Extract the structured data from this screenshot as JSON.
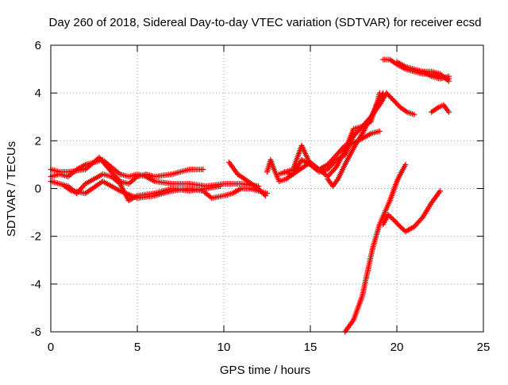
{
  "chart_data": {
    "type": "scatter",
    "title": "Day 260 of 2018, Sidereal Day-to-day VTEC variation (SDTVAR) for receiver ecsd",
    "xlabel": "GPS time / hours",
    "ylabel": "SDTVAR / TECUs",
    "xlim": [
      0,
      25
    ],
    "ylim": [
      -6,
      6
    ],
    "xticks": [
      0,
      5,
      10,
      15,
      20,
      25
    ],
    "yticks": [
      -6,
      -4,
      -2,
      0,
      2,
      4,
      6
    ],
    "xtick_labels": [
      "0",
      "5",
      "10",
      "15",
      "20",
      "25"
    ],
    "ytick_labels": [
      "-6",
      "-4",
      "-2",
      "0",
      "2",
      "4",
      "6"
    ],
    "grid": true,
    "legend": "none",
    "marker": "+",
    "color": "#ff0000",
    "series": [
      {
        "points": [
          [
            0,
            0.5
          ],
          [
            0.5,
            0.6
          ],
          [
            1,
            0.5
          ],
          [
            1.5,
            0.8
          ],
          [
            2,
            1.0
          ],
          [
            2.5,
            1.1
          ],
          [
            3,
            1.2
          ],
          [
            3.5,
            0.9
          ],
          [
            4,
            0.6
          ],
          [
            4.5,
            0.5
          ],
          [
            5,
            0.6
          ],
          [
            5.5,
            0.5
          ],
          [
            6,
            0.3
          ],
          [
            7,
            0.2
          ],
          [
            8,
            0.2
          ],
          [
            9,
            0.1
          ],
          [
            10,
            0.2
          ],
          [
            11,
            0.2
          ],
          [
            12,
            0.1
          ]
        ]
      },
      {
        "points": [
          [
            0,
            0.8
          ],
          [
            0.5,
            0.7
          ],
          [
            1,
            0.7
          ],
          [
            2,
            0.8
          ],
          [
            2.8,
            1.3
          ],
          [
            3.5,
            0.7
          ],
          [
            4,
            0.3
          ],
          [
            4.5,
            0.2
          ],
          [
            5,
            0.5
          ],
          [
            5.5,
            0.6
          ],
          [
            6,
            0.5
          ],
          [
            7,
            0.6
          ],
          [
            8,
            0.8
          ],
          [
            8.8,
            0.8
          ]
        ]
      },
      {
        "points": [
          [
            0,
            0.3
          ],
          [
            1,
            0.1
          ],
          [
            1.5,
            -0.2
          ],
          [
            2,
            0.2
          ],
          [
            3,
            0.6
          ],
          [
            3.5,
            0.5
          ],
          [
            4,
            0.2
          ],
          [
            4.5,
            -0.5
          ],
          [
            5,
            -0.3
          ],
          [
            6,
            -0.2
          ],
          [
            7,
            0.0
          ],
          [
            8,
            -0.1
          ],
          [
            9,
            0.0
          ],
          [
            9.8,
            0.1
          ]
        ]
      },
      {
        "points": [
          [
            0.8,
            0.1
          ],
          [
            1.2,
            -0.1
          ],
          [
            2,
            -0.2
          ],
          [
            3,
            0.3
          ],
          [
            4,
            -0.1
          ],
          [
            5,
            -0.4
          ],
          [
            6,
            -0.3
          ],
          [
            7,
            -0.1
          ],
          [
            8,
            0.0
          ],
          [
            8.8,
            -0.1
          ],
          [
            9.3,
            -0.4
          ],
          [
            10,
            -0.3
          ],
          [
            10.5,
            -0.2
          ],
          [
            11,
            0.0
          ],
          [
            11.5,
            0.0
          ],
          [
            12,
            -0.1
          ],
          [
            12.5,
            -0.2
          ]
        ]
      },
      {
        "points": [
          [
            10.3,
            1.1
          ],
          [
            10.8,
            0.6
          ],
          [
            11.2,
            0.4
          ],
          [
            11.6,
            0.2
          ],
          [
            12,
            0.0
          ],
          [
            12.4,
            -0.3
          ]
        ]
      },
      {
        "points": [
          [
            12.5,
            0.7
          ],
          [
            12.7,
            1.2
          ],
          [
            12.9,
            0.8
          ],
          [
            13.2,
            0.3
          ],
          [
            13.6,
            0.4
          ],
          [
            14,
            0.6
          ],
          [
            14.5,
            1.2
          ],
          [
            15,
            1.0
          ],
          [
            15.5,
            0.7
          ],
          [
            16,
            0.8
          ],
          [
            16.5,
            1.2
          ],
          [
            17,
            1.4
          ],
          [
            17.5,
            2.2
          ],
          [
            18,
            2.6
          ],
          [
            18.5,
            3.0
          ],
          [
            19,
            3.5
          ],
          [
            19.4,
            4.0
          ],
          [
            19.8,
            3.7
          ],
          [
            20.2,
            3.4
          ],
          [
            20.6,
            3.2
          ],
          [
            21,
            3.1
          ]
        ]
      },
      {
        "points": [
          [
            13.2,
            0.6
          ],
          [
            14,
            0.8
          ],
          [
            14.5,
            1.8
          ],
          [
            15,
            1.0
          ],
          [
            15.5,
            0.8
          ],
          [
            16,
            0.5
          ],
          [
            16.5,
            0.9
          ],
          [
            17,
            1.6
          ],
          [
            17.5,
            2.5
          ],
          [
            18,
            2.6
          ],
          [
            18.5,
            2.8
          ],
          [
            18.8,
            3.5
          ],
          [
            19.2,
            4.0
          ]
        ]
      },
      {
        "points": [
          [
            13.5,
            0.7
          ],
          [
            14,
            0.6
          ],
          [
            15,
            1.1
          ],
          [
            15.5,
            0.8
          ],
          [
            16,
            1.0
          ],
          [
            16.5,
            1.4
          ],
          [
            17,
            1.8
          ],
          [
            17.5,
            1.9
          ],
          [
            18,
            2.1
          ],
          [
            18.5,
            2.3
          ],
          [
            19,
            2.4
          ]
        ]
      },
      {
        "points": [
          [
            16,
            0.4
          ],
          [
            16.3,
            0.1
          ],
          [
            16.6,
            0.4
          ],
          [
            17,
            1.0
          ],
          [
            17.5,
            1.7
          ],
          [
            18,
            2.3
          ],
          [
            18.5,
            3.0
          ],
          [
            18.8,
            3.4
          ],
          [
            19,
            4.0
          ]
        ]
      },
      {
        "points": [
          [
            17,
            -6.0
          ],
          [
            17.5,
            -5.5
          ],
          [
            18,
            -4.5
          ],
          [
            18.3,
            -3.5
          ],
          [
            18.6,
            -2.5
          ],
          [
            19,
            -1.5
          ],
          [
            19.3,
            -1.0
          ],
          [
            19.6,
            -0.5
          ],
          [
            20,
            0.3
          ],
          [
            20.2,
            0.6
          ],
          [
            20.5,
            1.0
          ]
        ]
      },
      {
        "points": [
          [
            19.2,
            -1.5
          ],
          [
            19.5,
            -1.1
          ],
          [
            19.8,
            -1.3
          ],
          [
            20.2,
            -1.6
          ],
          [
            20.5,
            -1.8
          ],
          [
            21,
            -1.6
          ],
          [
            21.5,
            -1.2
          ],
          [
            22,
            -0.6
          ],
          [
            22.5,
            -0.1
          ]
        ]
      },
      {
        "points": [
          [
            19.2,
            5.4
          ],
          [
            19.6,
            5.4
          ],
          [
            20,
            5.2
          ],
          [
            20.5,
            5.0
          ],
          [
            21,
            4.9
          ],
          [
            21.5,
            4.8
          ],
          [
            22,
            4.8
          ],
          [
            22.5,
            4.7
          ],
          [
            23,
            4.6
          ]
        ]
      },
      {
        "points": [
          [
            20,
            5.3
          ],
          [
            20.5,
            5.1
          ],
          [
            21,
            5.0
          ],
          [
            21.5,
            4.9
          ],
          [
            22,
            4.7
          ],
          [
            22.5,
            4.6
          ],
          [
            23,
            4.7
          ]
        ]
      },
      {
        "points": [
          [
            21.5,
            4.9
          ],
          [
            22,
            4.9
          ],
          [
            22.5,
            4.8
          ],
          [
            23,
            4.5
          ]
        ]
      },
      {
        "points": [
          [
            22,
            3.2
          ],
          [
            22.4,
            3.4
          ],
          [
            22.7,
            3.5
          ],
          [
            23,
            3.2
          ]
        ]
      }
    ]
  }
}
